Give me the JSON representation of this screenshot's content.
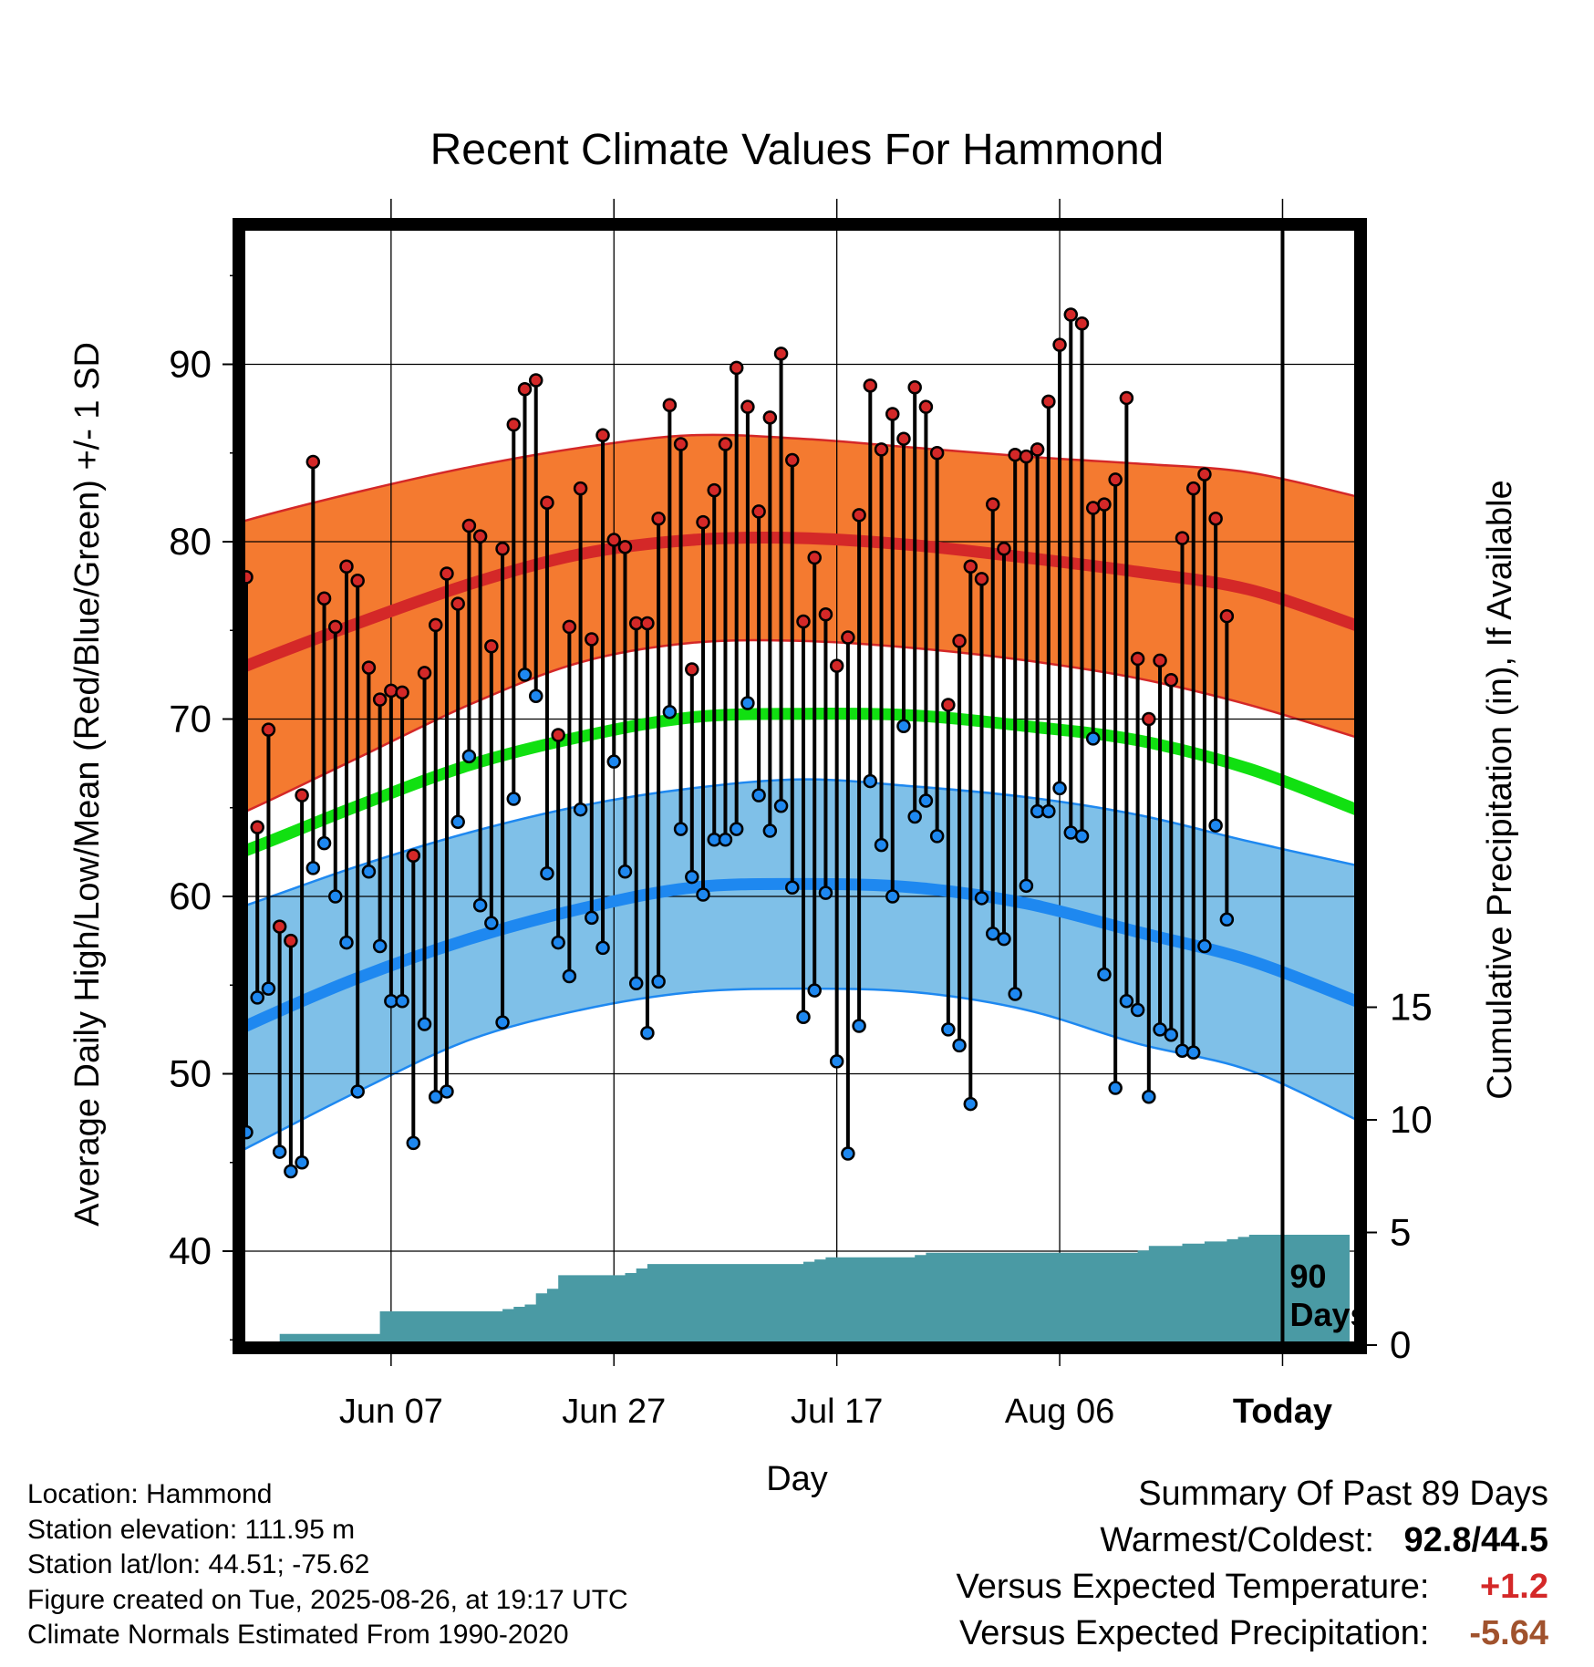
{
  "chart_data": {
    "type": "line",
    "title": "Recent Climate Values For Hammond",
    "xlabel": "Day",
    "ylabel_left": "Average Daily High/Low/Mean (Red/Blue/Green) +/- 1 SD",
    "ylabel_right": "Cumulative Precipitation (in), If Available",
    "x_tick_labels": [
      "Jun 07",
      "Jun 27",
      "Jul 17",
      "Aug 06",
      "Today"
    ],
    "y_ticks": [
      40,
      50,
      60,
      70,
      80,
      90
    ],
    "y_tick_labels": [
      "40",
      "50",
      "60",
      "70",
      "80",
      "90"
    ],
    "y2_ticks": [
      0,
      5,
      10,
      15
    ],
    "y2_tick_labels": [
      "0",
      "5",
      "10",
      "15"
    ],
    "ylim": [
      35,
      98
    ],
    "y2lim": [
      0,
      15
    ],
    "today_marker_label": "90\nDays",
    "colors": {
      "high_band": "#f47a30",
      "high_normal": "#d42828",
      "low_band": "#7fc0e8",
      "low_normal": "#1e88f0",
      "mean_normal": "#11e011",
      "precip": "#4a9aa4",
      "high_point": "#d42828",
      "low_point": "#1e88f0"
    },
    "normals": {
      "x_days": [
        -10,
        0,
        10,
        20,
        30,
        40,
        50,
        60,
        70,
        80,
        90,
        100
      ],
      "high_mean": [
        70.3,
        73.0,
        75.4,
        77.6,
        79.3,
        80.1,
        80.2,
        79.8,
        79.1,
        78.3,
        77.3,
        75.2
      ],
      "high_upper": [
        79.3,
        81.2,
        82.8,
        84.2,
        85.3,
        86.0,
        85.8,
        85.3,
        84.8,
        84.4,
        83.9,
        82.5
      ],
      "high_lower": [
        62.1,
        64.8,
        67.8,
        70.8,
        73.2,
        74.3,
        74.4,
        74.0,
        73.3,
        72.3,
        70.8,
        68.9
      ],
      "mean_normal": [
        60.4,
        62.6,
        65.1,
        67.4,
        69.0,
        70.1,
        70.3,
        70.2,
        69.6,
        68.8,
        67.2,
        64.8
      ],
      "low_mean": [
        49.7,
        52.7,
        55.4,
        57.6,
        59.3,
        60.5,
        60.7,
        60.5,
        59.6,
        58.0,
        56.4,
        54.0
      ],
      "low_upper": [
        57.4,
        59.5,
        61.7,
        63.6,
        65.1,
        66.1,
        66.6,
        66.2,
        65.6,
        64.6,
        63.1,
        61.7
      ],
      "low_lower": [
        42.6,
        45.8,
        49.0,
        51.9,
        53.6,
        54.6,
        54.8,
        54.6,
        53.6,
        51.7,
        50.2,
        47.3
      ]
    },
    "daily_highs": [
      78.0,
      63.9,
      69.4,
      58.3,
      57.5,
      65.7,
      84.5,
      76.8,
      75.2,
      78.6,
      77.8,
      72.9,
      71.1,
      71.6,
      71.5,
      62.3,
      72.6,
      75.3,
      78.2,
      76.5,
      80.9,
      80.3,
      74.1,
      79.6,
      86.6,
      88.6,
      89.1,
      82.2,
      69.1,
      75.2,
      83.0,
      74.5,
      86.0,
      80.1,
      79.7,
      75.4,
      75.4,
      81.3,
      87.7,
      85.5,
      72.8,
      81.1,
      82.9,
      85.5,
      89.8,
      87.6,
      81.7,
      87.0,
      90.6,
      84.6,
      75.5,
      79.1,
      75.9,
      73.0,
      74.6,
      81.5,
      88.8,
      85.2,
      87.2,
      85.8,
      88.7,
      87.6,
      85.0,
      70.8,
      74.4,
      78.6,
      77.9,
      82.1,
      79.6,
      84.9,
      84.8,
      85.2,
      87.9,
      91.1,
      92.8,
      92.3,
      81.9,
      82.1,
      83.5,
      88.1,
      73.4,
      70.0,
      73.3,
      72.2,
      80.2,
      83.0,
      83.8,
      81.3,
      75.8
    ],
    "daily_lows": [
      46.7,
      54.3,
      54.8,
      45.6,
      44.5,
      45.0,
      61.6,
      63.0,
      60.0,
      57.4,
      49.0,
      61.4,
      57.2,
      54.1,
      54.1,
      46.1,
      52.8,
      48.7,
      49.0,
      64.2,
      67.9,
      59.5,
      58.5,
      52.9,
      65.5,
      72.5,
      71.3,
      61.3,
      57.4,
      55.5,
      64.9,
      58.8,
      57.1,
      67.6,
      61.4,
      55.1,
      52.3,
      55.2,
      70.4,
      63.8,
      61.1,
      60.1,
      63.2,
      63.2,
      63.8,
      70.9,
      65.7,
      63.7,
      65.1,
      60.5,
      53.2,
      54.7,
      60.2,
      50.7,
      45.5,
      52.7,
      66.5,
      62.9,
      60.0,
      69.6,
      64.5,
      65.4,
      63.4,
      52.5,
      51.6,
      48.3,
      59.9,
      57.9,
      57.6,
      54.5,
      60.6,
      64.8,
      64.8,
      66.1,
      63.6,
      63.4,
      68.9,
      55.6,
      49.2,
      54.1,
      53.6,
      48.7,
      52.5,
      52.2,
      51.3,
      51.2,
      57.2,
      64.0,
      58.7
    ],
    "cumulative_precipitation": {
      "x_days": [
        0,
        3,
        11,
        12,
        23,
        24,
        25,
        26,
        27,
        28,
        30,
        34,
        35,
        36,
        37,
        40,
        50,
        51,
        52,
        60,
        61,
        80,
        81,
        82,
        84,
        86,
        87,
        88,
        89,
        90
      ],
      "values": [
        0.0,
        0.5,
        0.5,
        1.5,
        1.6,
        1.7,
        1.8,
        2.3,
        2.5,
        3.1,
        3.1,
        3.2,
        3.4,
        3.6,
        3.6,
        3.6,
        3.7,
        3.8,
        3.9,
        4.0,
        4.1,
        4.2,
        4.4,
        4.4,
        4.5,
        4.6,
        4.6,
        4.7,
        4.8,
        4.9
      ]
    }
  },
  "footer": {
    "location": "Location: Hammond",
    "elevation": "Station elevation: 111.95 m",
    "latlon": "Station lat/lon: 44.51; -75.62",
    "created": "Figure created on Tue, 2025-08-26, at 19:17 UTC",
    "normals": "Climate Normals Estimated From 1990-2020"
  },
  "summary": {
    "heading": "Summary Of Past 89 Days",
    "warmest_label": "Warmest/Coldest:",
    "warmest_value": "92.8/44.5",
    "temp_label": "Versus Expected Temperature:",
    "temp_value": "+1.2",
    "temp_color": "#d42828",
    "precip_label": "Versus Expected Precipitation:",
    "precip_value": "-5.64",
    "precip_color": "#a0522d"
  }
}
